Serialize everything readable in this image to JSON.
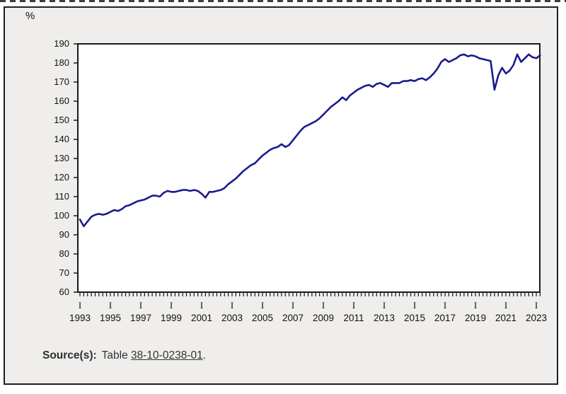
{
  "page": {
    "unit_label": "%"
  },
  "chart_data": {
    "type": "line",
    "frequency": "quarterly",
    "start_period": "1993 Q1",
    "end_period": "2023 Q2",
    "ylabel": "%",
    "ylim": [
      60,
      190
    ],
    "ytick_step": 10,
    "grid": "off",
    "legend": "none",
    "line_color": "#1b1b8f",
    "quarter_marker": "I",
    "x_tick_years": [
      1993,
      1995,
      1997,
      1999,
      2001,
      2003,
      2005,
      2007,
      2009,
      2011,
      2013,
      2015,
      2017,
      2019,
      2021,
      2023
    ],
    "values": [
      98,
      94.5,
      97,
      99.5,
      100.5,
      101,
      100.5,
      101,
      102,
      103,
      102.5,
      103.5,
      105,
      105.5,
      106.5,
      107.5,
      108,
      108.5,
      109.5,
      110.5,
      110.5,
      110,
      112,
      113,
      112.5,
      112.5,
      113,
      113.5,
      113.5,
      113,
      113.5,
      113,
      111.5,
      109.5,
      112.5,
      112.5,
      113,
      113.5,
      114.5,
      116.5,
      118,
      119.5,
      121.5,
      123.5,
      125,
      126.5,
      127.5,
      129.5,
      131.5,
      133,
      134.5,
      135.5,
      136,
      137.5,
      136,
      137,
      139.5,
      142,
      144.5,
      146.5,
      147.5,
      148.5,
      149.5,
      151,
      153,
      155,
      157,
      158.5,
      160,
      162,
      160.5,
      163,
      164.5,
      166,
      167,
      168,
      168.5,
      167.5,
      169,
      169.5,
      168.5,
      167.5,
      169.5,
      169.5,
      169.5,
      170.5,
      170.5,
      171,
      170.5,
      171.5,
      172,
      171,
      172.5,
      174.5,
      177,
      180.5,
      182,
      180.5,
      181.5,
      182.5,
      184,
      184.5,
      183.5,
      184,
      183.5,
      182.5,
      182,
      181.5,
      181,
      166,
      173.5,
      177.5,
      174.5,
      176,
      179,
      184.5,
      180.5,
      182.5,
      184.5,
      183,
      182.5,
      184
    ]
  },
  "source": {
    "label": "Source(s):",
    "text": "Table",
    "link_text": "38-10-0238-01",
    "suffix": "."
  }
}
